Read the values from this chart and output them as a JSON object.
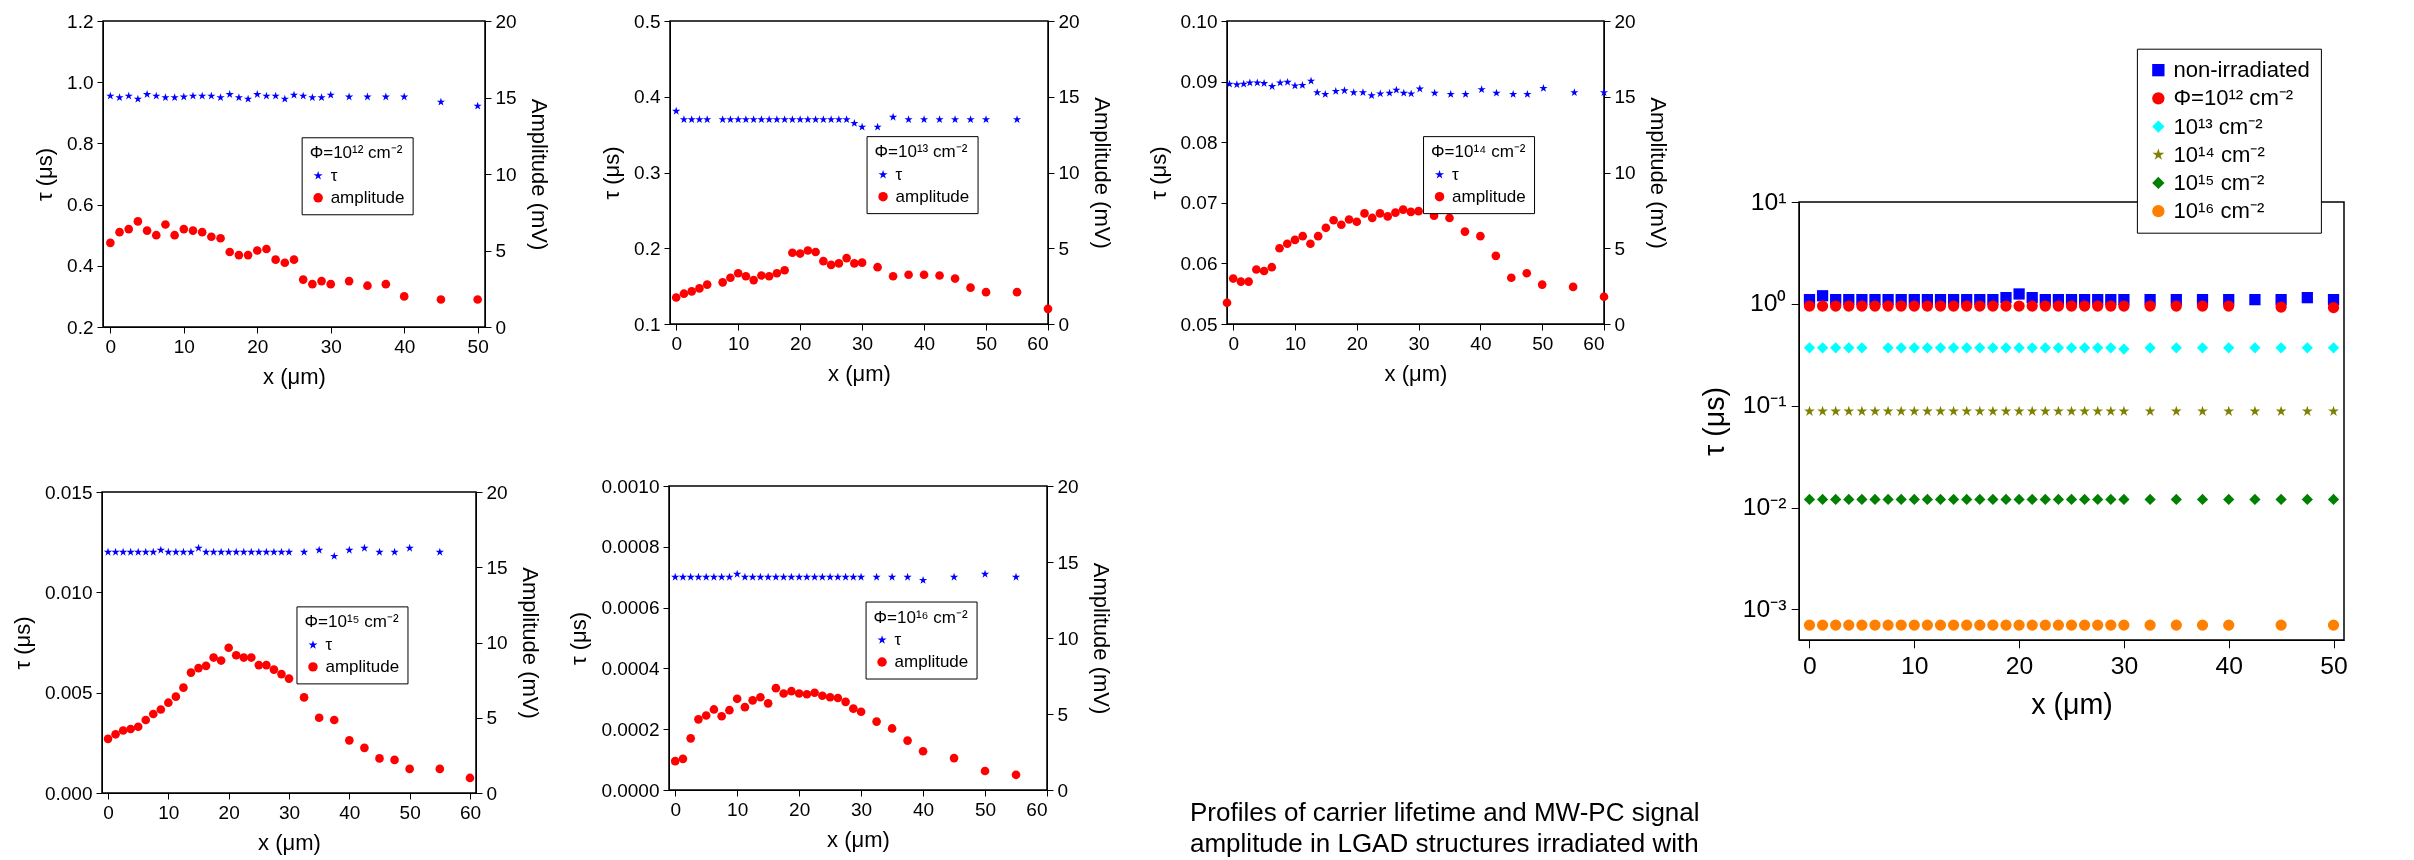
{
  "chart_data": [
    {
      "type": "scatter",
      "xlabel": "x (μm)",
      "ylabel": "τ (μs)",
      "y2label": "Amplitude (mV)",
      "legend_title": "Φ=10¹² cm⁻²",
      "legend": "right",
      "xlim": [
        -1,
        51
      ],
      "xticks": [
        0,
        10,
        20,
        30,
        40,
        50
      ],
      "ylim": [
        0.2,
        1.2
      ],
      "yticks": [
        0.2,
        0.4,
        0.6,
        0.8,
        {
          "value": 1,
          "label": "1.0"
        },
        1.2
      ],
      "y2lim": [
        0,
        20
      ],
      "y2ticks": [
        0,
        5,
        10,
        15,
        20
      ],
      "series": [
        {
          "name": "τ",
          "color": "#0000ff",
          "marker": "star",
          "x": [
            0,
            1.25,
            2.5,
            3.75,
            5,
            6.25,
            7.5,
            8.75,
            10,
            11.25,
            12.5,
            13.75,
            15,
            16.25,
            17.5,
            18.75,
            20,
            21.25,
            22.5,
            23.75,
            25,
            26.25,
            27.5,
            28.75,
            30,
            32.5,
            35,
            37.5,
            40,
            45,
            50
          ],
          "values": [
            0.955,
            0.95,
            0.955,
            0.945,
            0.96,
            0.955,
            0.95,
            0.95,
            0.952,
            0.955,
            0.955,
            0.955,
            0.95,
            0.96,
            0.95,
            0.945,
            0.96,
            0.955,
            0.955,
            0.945,
            0.958,
            0.955,
            0.95,
            0.95,
            0.958,
            0.952,
            0.952,
            0.952,
            0.952,
            0.935,
            0.922
          ]
        },
        {
          "name": "amplitude",
          "color": "#ff0000",
          "marker": "circle",
          "axis": "y2",
          "x": [
            0,
            1.25,
            2.5,
            3.75,
            5,
            6.25,
            7.5,
            8.75,
            10,
            11.25,
            12.5,
            13.75,
            15,
            16.25,
            17.5,
            18.75,
            20,
            21.25,
            22.5,
            23.75,
            25,
            26.25,
            27.5,
            28.75,
            30,
            32.5,
            35,
            37.5,
            40,
            45,
            50
          ],
          "values": [
            5.5,
            6.2,
            6.4,
            6.9,
            6.3,
            6.0,
            6.7,
            6.0,
            6.4,
            6.3,
            6.2,
            5.9,
            5.8,
            4.9,
            4.7,
            4.7,
            5.0,
            5.1,
            4.4,
            4.2,
            4.4,
            3.1,
            2.8,
            3.0,
            2.8,
            3.0,
            2.7,
            2.8,
            2.0,
            1.8,
            1.8
          ]
        }
      ]
    },
    {
      "type": "scatter",
      "xlabel": "x (μm)",
      "ylabel": "τ (μs)",
      "y2label": "Amplitude (mV)",
      "legend_title": "Φ=10¹³ cm⁻²",
      "legend": "right",
      "xlim": [
        -1,
        60
      ],
      "xticks": [
        0,
        10,
        20,
        30,
        40,
        50,
        60
      ],
      "ylim": [
        0.1,
        0.5
      ],
      "yticks": [
        0.1,
        0.2,
        0.3,
        0.4,
        0.5
      ],
      "y2lim": [
        0,
        20
      ],
      "y2ticks": [
        0,
        5,
        10,
        15,
        20
      ],
      "series": [
        {
          "name": "τ",
          "color": "#0000ff",
          "marker": "star",
          "x": [
            0,
            1.25,
            2.5,
            3.75,
            5,
            7.5,
            8.75,
            10,
            11.25,
            12.5,
            13.75,
            15,
            16.25,
            17.5,
            18.75,
            20,
            21.25,
            22.5,
            23.75,
            25,
            26.25,
            27.5,
            28.75,
            30,
            32.5,
            35,
            37.5,
            40,
            42.5,
            45,
            47.5,
            50,
            55
          ],
          "values": [
            0.381,
            0.37,
            0.37,
            0.37,
            0.37,
            0.37,
            0.37,
            0.37,
            0.37,
            0.37,
            0.37,
            0.37,
            0.37,
            0.37,
            0.37,
            0.37,
            0.37,
            0.37,
            0.37,
            0.37,
            0.37,
            0.37,
            0.365,
            0.36,
            0.36,
            0.373,
            0.37,
            0.37,
            0.37,
            0.37,
            0.37,
            0.37,
            0.37
          ]
        },
        {
          "name": "amplitude",
          "color": "#ff0000",
          "marker": "circle",
          "axis": "y2",
          "x": [
            0,
            1.25,
            2.5,
            3.75,
            5,
            7.5,
            8.75,
            10,
            11.25,
            12.5,
            13.75,
            15,
            16.25,
            17.5,
            18.75,
            20,
            21.25,
            22.5,
            23.75,
            25,
            26.25,
            27.5,
            28.75,
            30,
            32.5,
            35,
            37.5,
            40,
            42.5,
            45,
            47.5,
            50,
            55,
            60
          ],
          "values": [
            1.75,
            2.0,
            2.15,
            2.35,
            2.6,
            2.75,
            3.05,
            3.35,
            3.15,
            2.9,
            3.2,
            3.15,
            3.35,
            3.55,
            4.7,
            4.65,
            4.85,
            4.75,
            4.15,
            3.9,
            4.0,
            4.35,
            4.0,
            4.05,
            3.75,
            3.15,
            3.25,
            3.25,
            3.2,
            3.0,
            2.4,
            2.1,
            2.1,
            1.0
          ]
        }
      ]
    },
    {
      "type": "scatter",
      "xlabel": "x (μm)",
      "ylabel": "τ (μs)",
      "y2label": "Amplitude (mV)",
      "legend_title": "Φ=10¹⁴ cm⁻²",
      "legend": "right",
      "xlim": [
        -1,
        60
      ],
      "xticks": [
        0,
        10,
        20,
        30,
        40,
        50,
        60
      ],
      "ylim": [
        0.05,
        0.1
      ],
      "yticks": [
        0.05,
        0.06,
        0.07,
        0.08,
        0.09,
        {
          "value": 0.1,
          "label": "0.10"
        }
      ],
      "y2lim": [
        0,
        20
      ],
      "y2ticks": [
        0,
        5,
        10,
        15,
        20
      ],
      "series": [
        {
          "name": "τ",
          "color": "#0000ff",
          "marker": "star",
          "x": [
            -0.6,
            0.6,
            1.7,
            2.7,
            3.9,
            5.0,
            6.3,
            7.6,
            8.8,
            10,
            11.2,
            12.6,
            13.6,
            14.9,
            16.6,
            18,
            19.5,
            21,
            22.4,
            23.8,
            25.3,
            26.4,
            27.6,
            28.8,
            30.2,
            32.6,
            35.2,
            37.6,
            40.2,
            42.6,
            45.3,
            47.6,
            50.2,
            55.2,
            60
          ],
          "values": [
            0.0896,
            0.0895,
            0.0896,
            0.0898,
            0.0898,
            0.0897,
            0.0892,
            0.0898,
            0.0899,
            0.0893,
            0.0894,
            0.0901,
            0.0882,
            0.0879,
            0.0884,
            0.0885,
            0.0882,
            0.0882,
            0.0877,
            0.088,
            0.0881,
            0.0886,
            0.0881,
            0.088,
            0.0888,
            0.0881,
            0.0879,
            0.0879,
            0.0887,
            0.0881,
            0.0879,
            0.0879,
            0.0889,
            0.0882,
            0.0882
          ]
        },
        {
          "name": "amplitude",
          "color": "#ff0000",
          "marker": "circle",
          "axis": "y2",
          "x": [
            -1,
            0,
            1.25,
            2.5,
            3.75,
            5,
            6.25,
            7.5,
            8.75,
            10,
            11.25,
            12.5,
            13.75,
            15,
            16.25,
            17.5,
            18.75,
            20,
            21.25,
            22.5,
            23.75,
            25,
            26.25,
            27.5,
            28.75,
            30,
            32.5,
            35,
            37.5,
            40,
            42.5,
            45,
            47.5,
            50,
            55,
            60
          ],
          "values": [
            1.4,
            3.0,
            2.8,
            2.8,
            3.6,
            3.5,
            3.75,
            5.0,
            5.3,
            5.55,
            5.8,
            5.3,
            5.8,
            6.35,
            6.85,
            6.55,
            6.9,
            6.75,
            7.3,
            7.0,
            7.3,
            7.1,
            7.35,
            7.55,
            7.4,
            7.45,
            7.15,
            7.0,
            6.1,
            5.8,
            4.5,
            3.05,
            3.35,
            2.6,
            2.45,
            1.8
          ]
        }
      ]
    },
    {
      "type": "scatter",
      "xlabel": "x (μm)",
      "ylabel": "τ (μs)",
      "y2label": "Amplitude (mV)",
      "legend_title": "Φ=10¹⁵ cm⁻²",
      "legend": "right",
      "xlim": [
        -1,
        61
      ],
      "xticks": [
        0,
        10,
        20,
        30,
        40,
        50,
        60
      ],
      "ylim": [
        0,
        0.015
      ],
      "yticks": [
        {
          "value": 0,
          "label": "0.000"
        },
        0.005,
        {
          "value": 0.01,
          "label": "0.010"
        },
        0.015
      ],
      "y2lim": [
        0,
        20
      ],
      "y2ticks": [
        0,
        5,
        10,
        15,
        20
      ],
      "series": [
        {
          "name": "τ",
          "color": "#0000ff",
          "marker": "star",
          "x": [
            0,
            1.25,
            2.5,
            3.75,
            5,
            6.25,
            7.5,
            8.75,
            10,
            11.25,
            12.5,
            13.75,
            15,
            16.25,
            17.5,
            18.75,
            20,
            21.25,
            22.5,
            23.75,
            25,
            26.25,
            27.5,
            28.75,
            30,
            32.5,
            35,
            37.5,
            40,
            42.5,
            45,
            47.5,
            50,
            55
          ],
          "values": [
            0.012,
            0.012,
            0.012,
            0.012,
            0.012,
            0.012,
            0.012,
            0.0121,
            0.012,
            0.012,
            0.012,
            0.012,
            0.0122,
            0.012,
            0.012,
            0.012,
            0.012,
            0.012,
            0.012,
            0.012,
            0.012,
            0.012,
            0.012,
            0.012,
            0.012,
            0.012,
            0.0121,
            0.0118,
            0.0121,
            0.0122,
            0.012,
            0.012,
            0.0122,
            0.012
          ]
        },
        {
          "name": "amplitude",
          "color": "#ff0000",
          "marker": "circle",
          "axis": "y2",
          "x": [
            0,
            1.25,
            2.5,
            3.75,
            5,
            6.25,
            7.5,
            8.75,
            10,
            11.25,
            12.5,
            13.75,
            15,
            16.25,
            17.5,
            18.75,
            20,
            21.25,
            22.5,
            23.75,
            25,
            26.25,
            27.5,
            28.75,
            30,
            32.5,
            35,
            37.5,
            40,
            42.5,
            45,
            47.5,
            50,
            55,
            60
          ],
          "values": [
            3.6,
            3.9,
            4.15,
            4.25,
            4.4,
            4.85,
            5.25,
            5.55,
            6.0,
            6.4,
            7.0,
            8.0,
            8.3,
            8.45,
            9.0,
            8.8,
            9.65,
            9.15,
            9.0,
            9.0,
            8.5,
            8.5,
            8.2,
            7.9,
            7.6,
            6.35,
            5.0,
            4.85,
            3.5,
            3.0,
            2.3,
            2.2,
            1.6,
            1.6,
            1.0
          ]
        }
      ]
    },
    {
      "type": "scatter",
      "xlabel": "x (μm)",
      "ylabel": "τ (μs)",
      "y2label": "Amplitude (mV)",
      "legend_title": "Φ=10¹⁶ cm⁻²",
      "legend": "right",
      "xlim": [
        -1,
        60
      ],
      "xticks": [
        0,
        10,
        20,
        30,
        40,
        50,
        60
      ],
      "ylim": [
        0,
        0.001
      ],
      "yticks": [
        {
          "value": 0,
          "label": "0.0000"
        },
        0.0002,
        0.0004,
        0.0006,
        0.0008,
        {
          "value": 0.001,
          "label": "0.0010"
        }
      ],
      "y2lim": [
        0,
        20
      ],
      "y2ticks": [
        0,
        5,
        10,
        15,
        20
      ],
      "series": [
        {
          "name": "τ",
          "color": "#0000ff",
          "marker": "star",
          "x": [
            0,
            1.25,
            2.5,
            3.75,
            5,
            6.25,
            7.5,
            8.75,
            10,
            11.25,
            12.5,
            13.75,
            15,
            16.25,
            17.5,
            18.75,
            20,
            21.25,
            22.5,
            23.75,
            25,
            26.25,
            27.5,
            28.75,
            30,
            32.5,
            35,
            37.5,
            40,
            45,
            50,
            55
          ],
          "values": [
            0.0007,
            0.0007,
            0.0007,
            0.0007,
            0.0007,
            0.0007,
            0.0007,
            0.0007,
            0.00071,
            0.0007,
            0.0007,
            0.0007,
            0.0007,
            0.0007,
            0.0007,
            0.0007,
            0.0007,
            0.0007,
            0.0007,
            0.0007,
            0.0007,
            0.0007,
            0.0007,
            0.0007,
            0.0007,
            0.0007,
            0.0007,
            0.0007,
            0.00069,
            0.0007,
            0.00071,
            0.0007
          ]
        },
        {
          "name": "amplitude",
          "color": "#ff0000",
          "marker": "circle",
          "axis": "y2",
          "x": [
            0,
            1.25,
            2.5,
            3.75,
            5,
            6.25,
            7.5,
            8.75,
            10,
            11.25,
            12.5,
            13.75,
            15,
            16.25,
            17.5,
            18.75,
            20,
            21.25,
            22.5,
            23.75,
            25,
            26.25,
            27.5,
            28.75,
            30,
            32.5,
            35,
            37.5,
            40,
            45,
            50,
            55
          ],
          "values": [
            1.9,
            2.05,
            3.4,
            4.65,
            4.9,
            5.3,
            4.85,
            5.25,
            6.0,
            5.45,
            5.9,
            6.1,
            5.7,
            6.7,
            6.35,
            6.5,
            6.35,
            6.3,
            6.4,
            6.2,
            6.1,
            6.05,
            5.8,
            5.35,
            5.15,
            4.5,
            4.05,
            3.25,
            2.55,
            2.1,
            1.25,
            1.0
          ]
        }
      ]
    },
    {
      "type": "scatter",
      "xlabel": "x (μm)",
      "ylabel": "τ (μs)",
      "legend": "top right",
      "log": "y",
      "xlim": [
        -1,
        51
      ],
      "xticks": [
        0,
        10,
        20,
        30,
        40,
        50
      ],
      "ylim": [
        0.0005,
        10
      ],
      "yticks": [
        {
          "value": 0.001,
          "label": "10⁻³"
        },
        {
          "value": 0.01,
          "label": "10⁻²"
        },
        {
          "value": 0.1,
          "label": "10⁻¹"
        },
        {
          "value": 1,
          "label": "10⁰"
        },
        {
          "value": 10,
          "label": "10¹"
        }
      ],
      "annotations": [
        "Profiles of carrier lifetime and MW-PC signal amplitude in LGAD structures irradiated with"
      ],
      "series": [
        {
          "name": "non-irradiated",
          "color": "#0000ff",
          "marker": "square",
          "x": [
            0,
            1.25,
            2.5,
            3.75,
            5,
            6.25,
            7.5,
            8.75,
            10,
            11.25,
            12.5,
            13.75,
            15,
            16.25,
            17.5,
            18.75,
            20,
            21.25,
            22.5,
            23.75,
            25,
            26.25,
            27.5,
            28.75,
            30,
            32.5,
            35,
            37.5,
            40,
            42.5,
            45,
            47.5,
            50
          ],
          "values": [
            1.1,
            1.2,
            1.1,
            1.1,
            1.1,
            1.1,
            1.1,
            1.1,
            1.1,
            1.1,
            1.1,
            1.1,
            1.1,
            1.1,
            1.1,
            1.15,
            1.25,
            1.15,
            1.1,
            1.1,
            1.1,
            1.1,
            1.1,
            1.1,
            1.1,
            1.1,
            1.1,
            1.1,
            1.1,
            1.1,
            1.1,
            1.15,
            1.1
          ]
        },
        {
          "name": "Φ=10¹² cm⁻²",
          "color": "#ff0000",
          "marker": "circle",
          "x": [
            0,
            1.25,
            2.5,
            3.75,
            5,
            6.25,
            7.5,
            8.75,
            10,
            11.25,
            12.5,
            13.75,
            15,
            16.25,
            17.5,
            18.75,
            20,
            21.25,
            22.5,
            23.75,
            25,
            26.25,
            27.5,
            28.75,
            30,
            32.5,
            35,
            37.5,
            40,
            45,
            50
          ],
          "values": [
            0.95,
            0.95,
            0.95,
            0.95,
            0.95,
            0.95,
            0.95,
            0.95,
            0.95,
            0.95,
            0.95,
            0.95,
            0.95,
            0.95,
            0.95,
            0.95,
            0.95,
            0.95,
            0.95,
            0.95,
            0.95,
            0.95,
            0.95,
            0.95,
            0.95,
            0.95,
            0.95,
            0.95,
            0.95,
            0.93,
            0.92
          ]
        },
        {
          "name": "10¹³ cm⁻²",
          "color": "#00ffff",
          "marker": "diamond",
          "x": [
            0,
            1.25,
            2.5,
            3.75,
            5,
            7.5,
            8.75,
            10,
            11.25,
            12.5,
            13.75,
            15,
            16.25,
            17.5,
            18.75,
            20,
            21.25,
            22.5,
            23.75,
            25,
            26.25,
            27.5,
            28.75,
            30,
            32.5,
            35,
            37.5,
            40,
            42.5,
            45,
            47.5,
            50
          ],
          "values": [
            0.37,
            0.37,
            0.37,
            0.37,
            0.37,
            0.37,
            0.37,
            0.37,
            0.37,
            0.37,
            0.37,
            0.37,
            0.37,
            0.37,
            0.37,
            0.37,
            0.37,
            0.37,
            0.37,
            0.37,
            0.37,
            0.37,
            0.37,
            0.36,
            0.37,
            0.37,
            0.37,
            0.37,
            0.37,
            0.37,
            0.37,
            0.37
          ]
        },
        {
          "name": "10¹⁴ cm⁻²",
          "color": "#808000",
          "marker": "star",
          "x": [
            0,
            1.25,
            2.5,
            3.75,
            5,
            6.25,
            7.5,
            8.75,
            10,
            11.25,
            12.5,
            13.75,
            15,
            16.25,
            17.5,
            18.75,
            20,
            21.25,
            22.5,
            23.75,
            25,
            26.25,
            27.5,
            28.75,
            30,
            32.5,
            35,
            37.5,
            40,
            42.5,
            45,
            47.5,
            50
          ],
          "values": [
            0.088,
            0.088,
            0.088,
            0.088,
            0.088,
            0.088,
            0.088,
            0.088,
            0.088,
            0.088,
            0.088,
            0.088,
            0.088,
            0.088,
            0.088,
            0.088,
            0.088,
            0.088,
            0.088,
            0.088,
            0.088,
            0.088,
            0.088,
            0.088,
            0.088,
            0.088,
            0.088,
            0.088,
            0.088,
            0.088,
            0.088,
            0.088,
            0.088
          ]
        },
        {
          "name": "10¹⁵ cm⁻²",
          "color": "#008000",
          "marker": "diamond",
          "x": [
            0,
            1.25,
            2.5,
            3.75,
            5,
            6.25,
            7.5,
            8.75,
            10,
            11.25,
            12.5,
            13.75,
            15,
            16.25,
            17.5,
            18.75,
            20,
            21.25,
            22.5,
            23.75,
            25,
            26.25,
            27.5,
            28.75,
            30,
            32.5,
            35,
            37.5,
            40,
            42.5,
            45,
            47.5,
            50
          ],
          "values": [
            0.012,
            0.012,
            0.012,
            0.012,
            0.012,
            0.012,
            0.012,
            0.012,
            0.012,
            0.012,
            0.012,
            0.012,
            0.012,
            0.012,
            0.012,
            0.012,
            0.012,
            0.012,
            0.012,
            0.012,
            0.012,
            0.012,
            0.012,
            0.012,
            0.012,
            0.012,
            0.012,
            0.012,
            0.012,
            0.012,
            0.012,
            0.012,
            0.012
          ]
        },
        {
          "name": "10¹⁶ cm⁻²",
          "color": "#ff8000",
          "marker": "circle",
          "x": [
            0,
            1.25,
            2.5,
            3.75,
            5,
            6.25,
            7.5,
            8.75,
            10,
            11.25,
            12.5,
            13.75,
            15,
            16.25,
            17.5,
            18.75,
            20,
            21.25,
            22.5,
            23.75,
            25,
            26.25,
            27.5,
            28.75,
            30,
            32.5,
            35,
            37.5,
            40,
            45,
            50
          ],
          "values": [
            0.0007,
            0.0007,
            0.0007,
            0.0007,
            0.0007,
            0.0007,
            0.0007,
            0.0007,
            0.0007,
            0.0007,
            0.0007,
            0.0007,
            0.0007,
            0.0007,
            0.0007,
            0.0007,
            0.0007,
            0.0007,
            0.0007,
            0.0007,
            0.0007,
            0.0007,
            0.0007,
            0.0007,
            0.0007,
            0.0007,
            0.0007,
            0.0007,
            0.0007,
            0.0007,
            0.0007
          ]
        }
      ]
    }
  ]
}
